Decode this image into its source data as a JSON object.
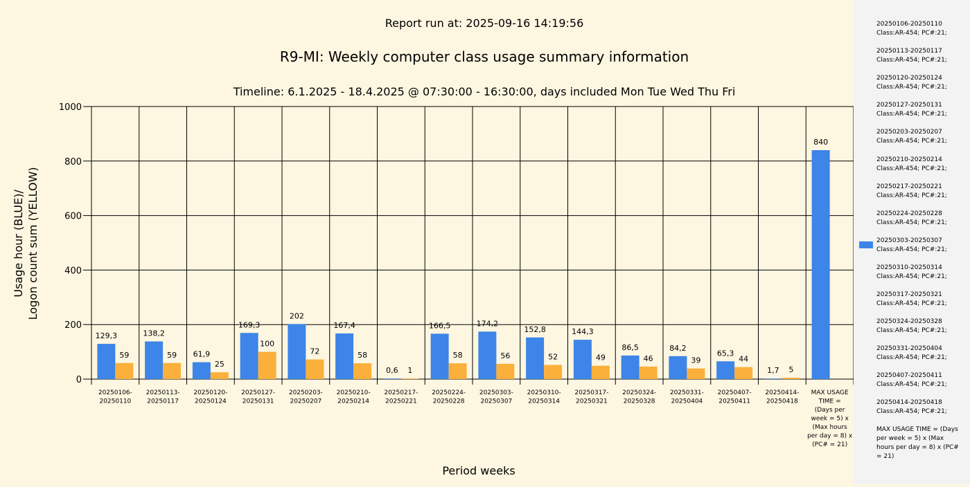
{
  "header": {
    "report_run": "Report run at: 2025-09-16 14:19:56"
  },
  "colors": {
    "usage": "#3d85e8",
    "logon": "#fbb03b",
    "background": "#fdf6e1",
    "legend_bg": "#f3f3f3"
  },
  "legend": {
    "items": [
      {
        "period": "20250106-20250110",
        "detail": "Class:AR-454; PC#:21;"
      },
      {
        "period": "20250113-20250117",
        "detail": "Class:AR-454; PC#:21;"
      },
      {
        "period": "20250120-20250124",
        "detail": "Class:AR-454; PC#:21;"
      },
      {
        "period": "20250127-20250131",
        "detail": "Class:AR-454; PC#:21;"
      },
      {
        "period": "20250203-20250207",
        "detail": "Class:AR-454; PC#:21;"
      },
      {
        "period": "20250210-20250214",
        "detail": "Class:AR-454; PC#:21;"
      },
      {
        "period": "20250217-20250221",
        "detail": "Class:AR-454; PC#:21;"
      },
      {
        "period": "20250224-20250228",
        "detail": "Class:AR-454; PC#:21;"
      },
      {
        "period": "20250303-20250307",
        "detail": "Class:AR-454; PC#:21;"
      },
      {
        "period": "20250310-20250314",
        "detail": "Class:AR-454; PC#:21;"
      },
      {
        "period": "20250317-20250321",
        "detail": "Class:AR-454; PC#:21;"
      },
      {
        "period": "20250324-20250328",
        "detail": "Class:AR-454; PC#:21;"
      },
      {
        "period": "20250331-20250404",
        "detail": "Class:AR-454; PC#:21;"
      },
      {
        "period": "20250407-20250411",
        "detail": "Class:AR-454; PC#:21;"
      },
      {
        "period": "20250414-20250418",
        "detail": "Class:AR-454; PC#:21;"
      }
    ],
    "swatch_item": 8,
    "note": "MAX USAGE TIME = (Days per week = 5) x (Max hours per day = 8) x (PC# = 21)"
  },
  "chart_data": {
    "type": "bar",
    "title": "R9-MI: Weekly computer class usage summary information",
    "subtitle": "Timeline:  6.1.2025  - 18.4.2025  @  07:30:00 -  16:30:00, days included Mon Tue Wed Thu Fri",
    "xlabel": "Period weeks",
    "ylabel_line1": "Usage hour (BLUE)/",
    "ylabel_line2": "Logon count sum (YELLOW)",
    "ylim": [
      0,
      1000
    ],
    "yticks": [
      0,
      200,
      400,
      600,
      800,
      1000
    ],
    "grid": true,
    "categories": [
      [
        "20250106-",
        "20250110"
      ],
      [
        "20250113-",
        "20250117"
      ],
      [
        "20250120-",
        "20250124"
      ],
      [
        "20250127-",
        "20250131"
      ],
      [
        "20250203-",
        "20250207"
      ],
      [
        "20250210-",
        "20250214"
      ],
      [
        "20250217-",
        "20250221"
      ],
      [
        "20250224-",
        "20250228"
      ],
      [
        "20250303-",
        "20250307"
      ],
      [
        "20250310-",
        "20250314"
      ],
      [
        "20250317-",
        "20250321"
      ],
      [
        "20250324-",
        "20250328"
      ],
      [
        "20250331-",
        "20250404"
      ],
      [
        "20250407-",
        "20250411"
      ],
      [
        "20250414-",
        "20250418"
      ],
      [
        "MAX USAGE",
        "TIME =",
        "(Days per",
        "week = 5) x",
        "(Max hours",
        "per day = 8) x",
        "(PC# = 21)"
      ]
    ],
    "series": [
      {
        "values": [
          129.3,
          138.2,
          61.9,
          169.3,
          202,
          167.4,
          0.6,
          166.5,
          174.2,
          152.8,
          144.3,
          86.5,
          84.2,
          65.3,
          1.7,
          840
        ],
        "labels": [
          "129,3",
          "138,2",
          "61,9",
          "169,3",
          "202",
          "167,4",
          "0,6",
          "166,5",
          "174,2",
          "152,8",
          "144,3",
          "86,5",
          "84,2",
          "65,3",
          "1,7",
          "840"
        ]
      },
      {
        "values": [
          59,
          59,
          25,
          100,
          72,
          58,
          1,
          58,
          56,
          52,
          49,
          46,
          39,
          44,
          5,
          null
        ],
        "labels": [
          "59",
          "59",
          "25",
          "100",
          "72",
          "58",
          "1",
          "58",
          "56",
          "52",
          "49",
          "46",
          "39",
          "44",
          "5",
          ""
        ]
      }
    ]
  }
}
